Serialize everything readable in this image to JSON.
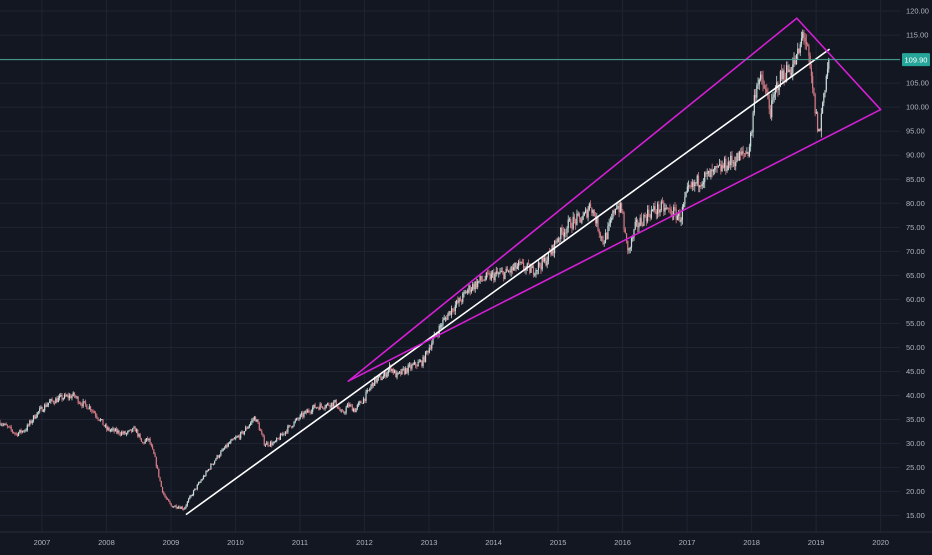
{
  "colors": {
    "background": "#131722",
    "grid": "#1f2433",
    "axis_text": "#b2b5be",
    "candle_up": "#c9dcd9",
    "candle_down": "#d77b85",
    "trendline": "#ffffff",
    "channel": "#d41fd4",
    "price_line": "#4aa396",
    "price_label_bg": "#26a69a"
  },
  "chart_data": {
    "type": "line",
    "style": "candlestick",
    "title": "",
    "xlabel": "",
    "ylabel": "",
    "x_ticks": [
      "2007",
      "2008",
      "2009",
      "2010",
      "2011",
      "2012",
      "2013",
      "2014",
      "2015",
      "2016",
      "2017",
      "2018",
      "2019",
      "2020"
    ],
    "y_ticks": [
      "15.00",
      "20.00",
      "25.00",
      "30.00",
      "35.00",
      "40.00",
      "45.00",
      "50.00",
      "55.00",
      "60.00",
      "65.00",
      "70.00",
      "75.00",
      "80.00",
      "85.00",
      "90.00",
      "95.00",
      "100.00",
      "105.00",
      "110.00",
      "115.00",
      "120.00"
    ],
    "xlim": [
      2006.35,
      2020.3
    ],
    "ylim": [
      11.6,
      122.3
    ],
    "grid": true,
    "current_price": 109.9,
    "current_price_label": "109.90",
    "series": [
      {
        "x": [
          2006.35,
          2006.5,
          2006.6,
          2006.75,
          2006.9,
          2007.1,
          2007.3,
          2007.5,
          2007.6,
          2007.75,
          2007.9,
          2008.0,
          2008.15,
          2008.3,
          2008.45,
          2008.55,
          2008.65,
          2008.75,
          2008.8,
          2008.85,
          2008.9,
          2009.0,
          2009.1,
          2009.2,
          2009.35,
          2009.5,
          2009.7,
          2009.9,
          2010.1,
          2010.3,
          2010.35,
          2010.45,
          2010.6,
          2010.8,
          2011.0,
          2011.2,
          2011.4,
          2011.55,
          2011.65,
          2011.75,
          2011.85,
          2012.0,
          2012.15,
          2012.3,
          2012.4,
          2012.5,
          2012.6,
          2012.8,
          2012.9,
          2013.0,
          2013.2,
          2013.35,
          2013.5,
          2013.6,
          2013.8,
          2014.0,
          2014.2,
          2014.4,
          2014.6,
          2014.8,
          2014.9,
          2015.0,
          2015.2,
          2015.4,
          2015.5,
          2015.6,
          2015.7,
          2015.8,
          2015.9,
          2016.0,
          2016.05,
          2016.1,
          2016.2,
          2016.4,
          2016.6,
          2016.8,
          2016.9,
          2017.0,
          2017.2,
          2017.4,
          2017.6,
          2017.8,
          2017.95,
          2018.0,
          2018.05,
          2018.1,
          2018.2,
          2018.3,
          2018.4,
          2018.5,
          2018.6,
          2018.7,
          2018.75,
          2018.8,
          2018.85,
          2018.9,
          2018.95,
          2019.0,
          2019.05,
          2019.1,
          2019.15,
          2019.2
        ],
        "y": [
          34.5,
          33.0,
          32.0,
          33.0,
          36.0,
          38.5,
          39.5,
          40.0,
          38.5,
          37.5,
          35.0,
          33.0,
          32.5,
          32.0,
          33.0,
          30.0,
          31.0,
          27.0,
          24.0,
          21.0,
          19.0,
          17.0,
          17.0,
          16.5,
          20.0,
          23.0,
          27.0,
          30.0,
          32.0,
          35.5,
          34.0,
          30.0,
          30.0,
          33.0,
          35.5,
          37.5,
          38.0,
          38.5,
          36.0,
          38.0,
          37.0,
          39.5,
          43.0,
          44.0,
          46.0,
          44.0,
          45.0,
          46.5,
          47.0,
          50.0,
          55.0,
          58.0,
          60.0,
          62.0,
          64.0,
          65.0,
          65.5,
          67.0,
          66.0,
          68.0,
          70.0,
          73.0,
          76.0,
          77.0,
          80.0,
          76.0,
          72.0,
          75.0,
          80.0,
          78.0,
          72.0,
          70.0,
          75.0,
          78.0,
          79.0,
          78.0,
          77.0,
          82.0,
          85.0,
          86.0,
          88.0,
          89.5,
          91.0,
          95.0,
          103.0,
          106.0,
          104.0,
          99.0,
          105.0,
          107.0,
          108.0,
          110.0,
          112.0,
          116.0,
          113.0,
          108.0,
          103.0,
          98.0,
          94.0,
          101.0,
          106.0,
          109.9
        ]
      }
    ],
    "annotations": [
      {
        "type": "trendline",
        "x1": 2009.24,
        "y1": 15.3,
        "x2": 2019.2,
        "y2": 112.0
      },
      {
        "type": "channel-upper",
        "x1": 2011.75,
        "y1": 43.0,
        "x2": 2018.7,
        "y2": 118.5
      },
      {
        "type": "channel-lower",
        "x1": 2011.75,
        "y1": 43.0,
        "x2": 2020.0,
        "y2": 99.5
      },
      {
        "type": "channel-tip",
        "x1": 2018.7,
        "y1": 118.5,
        "x2": 2020.0,
        "y2": 99.5
      }
    ]
  }
}
